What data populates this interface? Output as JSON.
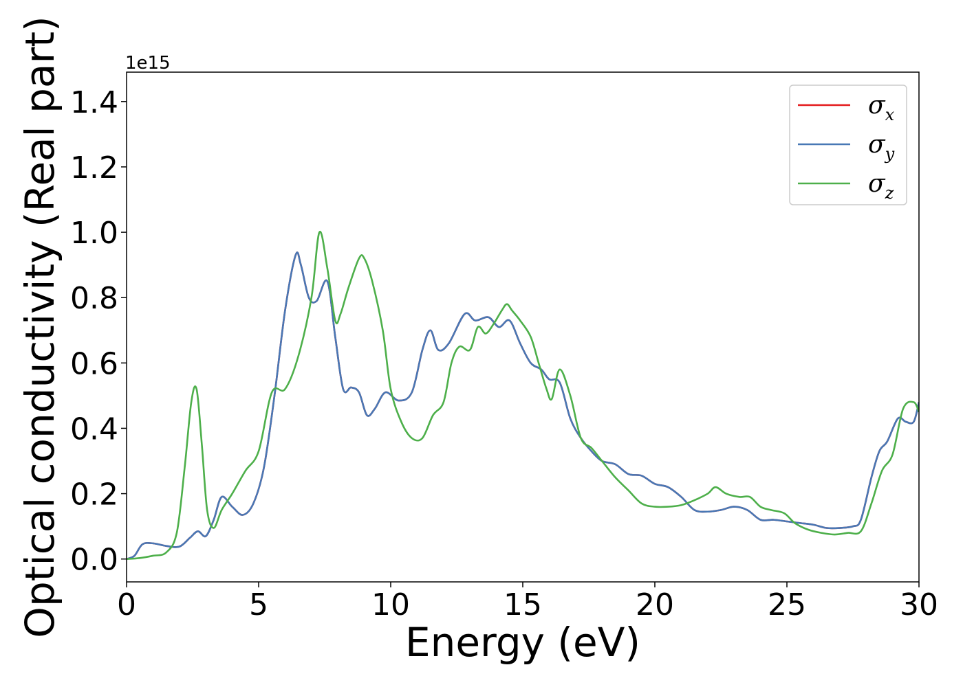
{
  "chart_data": {
    "type": "line",
    "xlabel": "Energy (eV)",
    "ylabel": "Optical conductivity (Real part)",
    "y_offset_label": "1e15",
    "xlim": [
      0,
      30
    ],
    "ylim": [
      -0.07,
      1.49
    ],
    "x_ticks": [
      0,
      5,
      10,
      15,
      20,
      25,
      30
    ],
    "x_tick_labels": [
      "0",
      "5",
      "10",
      "15",
      "20",
      "25",
      "30"
    ],
    "y_ticks": [
      0.0,
      0.2,
      0.4,
      0.6,
      0.8,
      1.0,
      1.2,
      1.4
    ],
    "y_tick_labels": [
      "0.0",
      "0.2",
      "0.4",
      "0.6",
      "0.8",
      "1.0",
      "1.2",
      "1.4"
    ],
    "grid": false,
    "legend_position": "top-right",
    "series": [
      {
        "name": "σx",
        "base": "σ",
        "sub": "x",
        "color": "#e41a1c",
        "x": [
          0,
          0.3,
          0.6,
          1.0,
          1.5,
          2.0,
          2.4,
          2.7,
          3.0,
          3.3,
          3.6,
          4.0,
          4.4,
          4.8,
          5.2,
          5.6,
          6.0,
          6.4,
          6.6,
          6.9,
          7.2,
          7.6,
          7.9,
          8.2,
          8.5,
          8.8,
          9.1,
          9.4,
          9.8,
          10.3,
          10.8,
          11.2,
          11.5,
          11.8,
          12.2,
          12.8,
          13.2,
          13.7,
          14.1,
          14.5,
          14.9,
          15.3,
          15.7,
          16.0,
          16.4,
          16.8,
          17.2,
          17.6,
          18.0,
          18.5,
          19.0,
          19.5,
          20.0,
          20.5,
          21.0,
          21.5,
          22.0,
          22.5,
          23.0,
          23.5,
          24.0,
          24.5,
          25.0,
          25.5,
          26.0,
          26.5,
          27.0,
          27.5,
          27.8,
          28.2,
          28.5,
          28.8,
          29.2,
          29.5,
          29.8,
          30.0
        ],
        "y": [
          0.0,
          0.01,
          0.045,
          0.048,
          0.04,
          0.038,
          0.065,
          0.085,
          0.07,
          0.12,
          0.19,
          0.16,
          0.135,
          0.17,
          0.28,
          0.5,
          0.76,
          0.93,
          0.9,
          0.8,
          0.79,
          0.85,
          0.68,
          0.52,
          0.525,
          0.51,
          0.44,
          0.46,
          0.51,
          0.485,
          0.51,
          0.64,
          0.7,
          0.64,
          0.66,
          0.75,
          0.73,
          0.74,
          0.71,
          0.73,
          0.66,
          0.6,
          0.58,
          0.55,
          0.54,
          0.43,
          0.37,
          0.33,
          0.3,
          0.29,
          0.26,
          0.255,
          0.23,
          0.22,
          0.19,
          0.15,
          0.145,
          0.15,
          0.16,
          0.15,
          0.12,
          0.12,
          0.115,
          0.11,
          0.105,
          0.095,
          0.095,
          0.1,
          0.12,
          0.25,
          0.33,
          0.36,
          0.43,
          0.42,
          0.42,
          0.48
        ]
      },
      {
        "name": "σy",
        "base": "σ",
        "sub": "y",
        "color": "#4878b5",
        "x": [
          0,
          0.3,
          0.6,
          1.0,
          1.5,
          2.0,
          2.4,
          2.7,
          3.0,
          3.3,
          3.6,
          4.0,
          4.4,
          4.8,
          5.2,
          5.6,
          6.0,
          6.4,
          6.6,
          6.9,
          7.2,
          7.6,
          7.9,
          8.2,
          8.5,
          8.8,
          9.1,
          9.4,
          9.8,
          10.3,
          10.8,
          11.2,
          11.5,
          11.8,
          12.2,
          12.8,
          13.2,
          13.7,
          14.1,
          14.5,
          14.9,
          15.3,
          15.7,
          16.0,
          16.4,
          16.8,
          17.2,
          17.6,
          18.0,
          18.5,
          19.0,
          19.5,
          20.0,
          20.5,
          21.0,
          21.5,
          22.0,
          22.5,
          23.0,
          23.5,
          24.0,
          24.5,
          25.0,
          25.5,
          26.0,
          26.5,
          27.0,
          27.5,
          27.8,
          28.2,
          28.5,
          28.8,
          29.2,
          29.5,
          29.8,
          30.0
        ],
        "y": [
          0.0,
          0.01,
          0.045,
          0.048,
          0.04,
          0.038,
          0.065,
          0.085,
          0.07,
          0.12,
          0.19,
          0.16,
          0.135,
          0.17,
          0.28,
          0.5,
          0.76,
          0.93,
          0.9,
          0.8,
          0.79,
          0.85,
          0.68,
          0.52,
          0.525,
          0.51,
          0.44,
          0.46,
          0.51,
          0.485,
          0.51,
          0.64,
          0.7,
          0.64,
          0.66,
          0.75,
          0.73,
          0.74,
          0.71,
          0.73,
          0.66,
          0.6,
          0.58,
          0.55,
          0.54,
          0.43,
          0.37,
          0.33,
          0.3,
          0.29,
          0.26,
          0.255,
          0.23,
          0.22,
          0.19,
          0.15,
          0.145,
          0.15,
          0.16,
          0.15,
          0.12,
          0.12,
          0.115,
          0.11,
          0.105,
          0.095,
          0.095,
          0.1,
          0.12,
          0.25,
          0.33,
          0.36,
          0.43,
          0.42,
          0.42,
          0.48
        ]
      },
      {
        "name": "σz",
        "base": "σ",
        "sub": "z",
        "color": "#4daf4a",
        "x": [
          0,
          0.5,
          1.0,
          1.5,
          1.9,
          2.2,
          2.45,
          2.65,
          2.85,
          3.05,
          3.3,
          3.6,
          4.0,
          4.5,
          5.0,
          5.5,
          6.0,
          6.5,
          7.0,
          7.3,
          7.6,
          7.9,
          8.1,
          8.4,
          8.8,
          9.0,
          9.3,
          9.7,
          10.0,
          10.4,
          10.8,
          11.2,
          11.6,
          12.0,
          12.3,
          12.6,
          13.0,
          13.3,
          13.6,
          13.9,
          14.2,
          14.4,
          14.6,
          14.9,
          15.3,
          15.6,
          15.9,
          16.1,
          16.4,
          16.8,
          17.2,
          17.6,
          18.0,
          18.5,
          19.0,
          19.5,
          20.0,
          20.5,
          21.0,
          21.5,
          22.0,
          22.3,
          22.7,
          23.2,
          23.6,
          24.0,
          24.4,
          24.9,
          25.3,
          25.8,
          26.3,
          26.8,
          27.3,
          27.8,
          28.2,
          28.6,
          29.0,
          29.4,
          29.8,
          30.0
        ],
        "y": [
          0.0,
          0.003,
          0.01,
          0.02,
          0.08,
          0.28,
          0.48,
          0.52,
          0.35,
          0.15,
          0.095,
          0.15,
          0.2,
          0.27,
          0.33,
          0.51,
          0.52,
          0.62,
          0.8,
          1.0,
          0.89,
          0.73,
          0.75,
          0.83,
          0.92,
          0.92,
          0.85,
          0.7,
          0.52,
          0.42,
          0.37,
          0.37,
          0.44,
          0.48,
          0.6,
          0.65,
          0.64,
          0.71,
          0.69,
          0.72,
          0.76,
          0.78,
          0.76,
          0.73,
          0.68,
          0.6,
          0.52,
          0.49,
          0.58,
          0.5,
          0.37,
          0.34,
          0.3,
          0.25,
          0.21,
          0.17,
          0.16,
          0.16,
          0.165,
          0.18,
          0.2,
          0.22,
          0.2,
          0.19,
          0.19,
          0.16,
          0.15,
          0.14,
          0.11,
          0.09,
          0.08,
          0.075,
          0.08,
          0.085,
          0.17,
          0.27,
          0.32,
          0.46,
          0.48,
          0.45
        ]
      }
    ]
  }
}
